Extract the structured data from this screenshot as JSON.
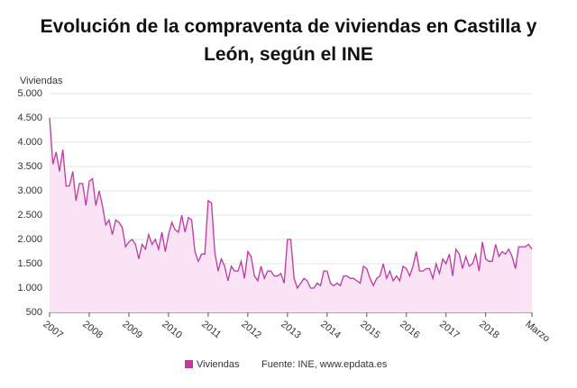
{
  "chart_data": {
    "type": "line",
    "title": "Evolución de la compraventa de viviendas en Castilla y León, según el INE",
    "y_label": "Viviendas",
    "source": "Fuente: INE, www.epdata.es",
    "categories": [
      "2007",
      null,
      null,
      null,
      null,
      null,
      null,
      null,
      null,
      null,
      null,
      null,
      "2008",
      null,
      null,
      null,
      null,
      null,
      null,
      null,
      null,
      null,
      null,
      null,
      "2009",
      null,
      null,
      null,
      null,
      null,
      null,
      null,
      null,
      null,
      null,
      null,
      "2010",
      null,
      null,
      null,
      null,
      null,
      null,
      null,
      null,
      null,
      null,
      null,
      "2011",
      null,
      null,
      null,
      null,
      null,
      null,
      null,
      null,
      null,
      null,
      null,
      "2012",
      null,
      null,
      null,
      null,
      null,
      null,
      null,
      null,
      null,
      null,
      null,
      "2013",
      null,
      null,
      null,
      null,
      null,
      null,
      null,
      null,
      null,
      null,
      null,
      "2014",
      null,
      null,
      null,
      null,
      null,
      null,
      null,
      null,
      null,
      null,
      null,
      "2015",
      null,
      null,
      null,
      null,
      null,
      null,
      null,
      null,
      null,
      null,
      null,
      "2016",
      null,
      null,
      null,
      null,
      null,
      null,
      null,
      null,
      null,
      null,
      null,
      "2017",
      null,
      null,
      null,
      null,
      null,
      null,
      null,
      null,
      null,
      null,
      null,
      "2018",
      null,
      null,
      null,
      null,
      null,
      null,
      null,
      null,
      null,
      null,
      null,
      null,
      null,
      "Marzo"
    ],
    "series": [
      {
        "name": "Viviendas",
        "color": "#c0399f",
        "values": [
          4500,
          3550,
          3800,
          3400,
          3850,
          3100,
          3100,
          3400,
          2800,
          3150,
          3150,
          2700,
          3200,
          3250,
          2700,
          3000,
          2700,
          2300,
          2400,
          2100,
          2400,
          2350,
          2250,
          1850,
          1950,
          2000,
          1900,
          1600,
          1900,
          1800,
          2100,
          1900,
          2000,
          1800,
          2150,
          1750,
          2100,
          2350,
          2200,
          2150,
          2500,
          2150,
          2450,
          2400,
          1750,
          1550,
          1700,
          1700,
          2800,
          2750,
          1750,
          1350,
          1600,
          1450,
          1150,
          1450,
          1350,
          1350,
          1550,
          1200,
          1750,
          1650,
          1250,
          1150,
          1450,
          1200,
          1350,
          1350,
          1250,
          1250,
          1300,
          1100,
          2000,
          2000,
          1200,
          1000,
          1100,
          1200,
          1150,
          1000,
          1000,
          1100,
          1050,
          1350,
          1350,
          1100,
          1050,
          1100,
          1050,
          1250,
          1250,
          1200,
          1200,
          1150,
          1100,
          1450,
          1400,
          1200,
          1050,
          1200,
          1250,
          1500,
          1200,
          1350,
          1150,
          1250,
          1150,
          1450,
          1400,
          1250,
          1450,
          1750,
          1350,
          1350,
          1400,
          1400,
          1200,
          1500,
          1300,
          1600,
          1500,
          1700,
          1250,
          1800,
          1700,
          1400,
          1650,
          1450,
          1500,
          1700,
          1350,
          1950,
          1600,
          1550,
          1550,
          1900,
          1650,
          1750,
          1700,
          1800,
          1650,
          1400,
          1850,
          1850,
          1850,
          1900,
          1800
        ]
      }
    ],
    "ylim": [
      500,
      5000
    ],
    "yticks": [
      500,
      {
        "value": 1000,
        "label": "1.000"
      },
      {
        "value": 1500,
        "label": "1.500"
      },
      {
        "value": 2000,
        "label": "2.000"
      },
      {
        "value": 2500,
        "label": "2.500"
      },
      {
        "value": 3000,
        "label": "3.000"
      },
      {
        "value": 3500,
        "label": "3.500"
      },
      {
        "value": 4000,
        "label": "4.000"
      },
      {
        "value": 4500,
        "label": "4.500"
      },
      {
        "value": 5000,
        "label": "5.000"
      }
    ],
    "grid": true,
    "area_fill": "#f9e3f4"
  }
}
